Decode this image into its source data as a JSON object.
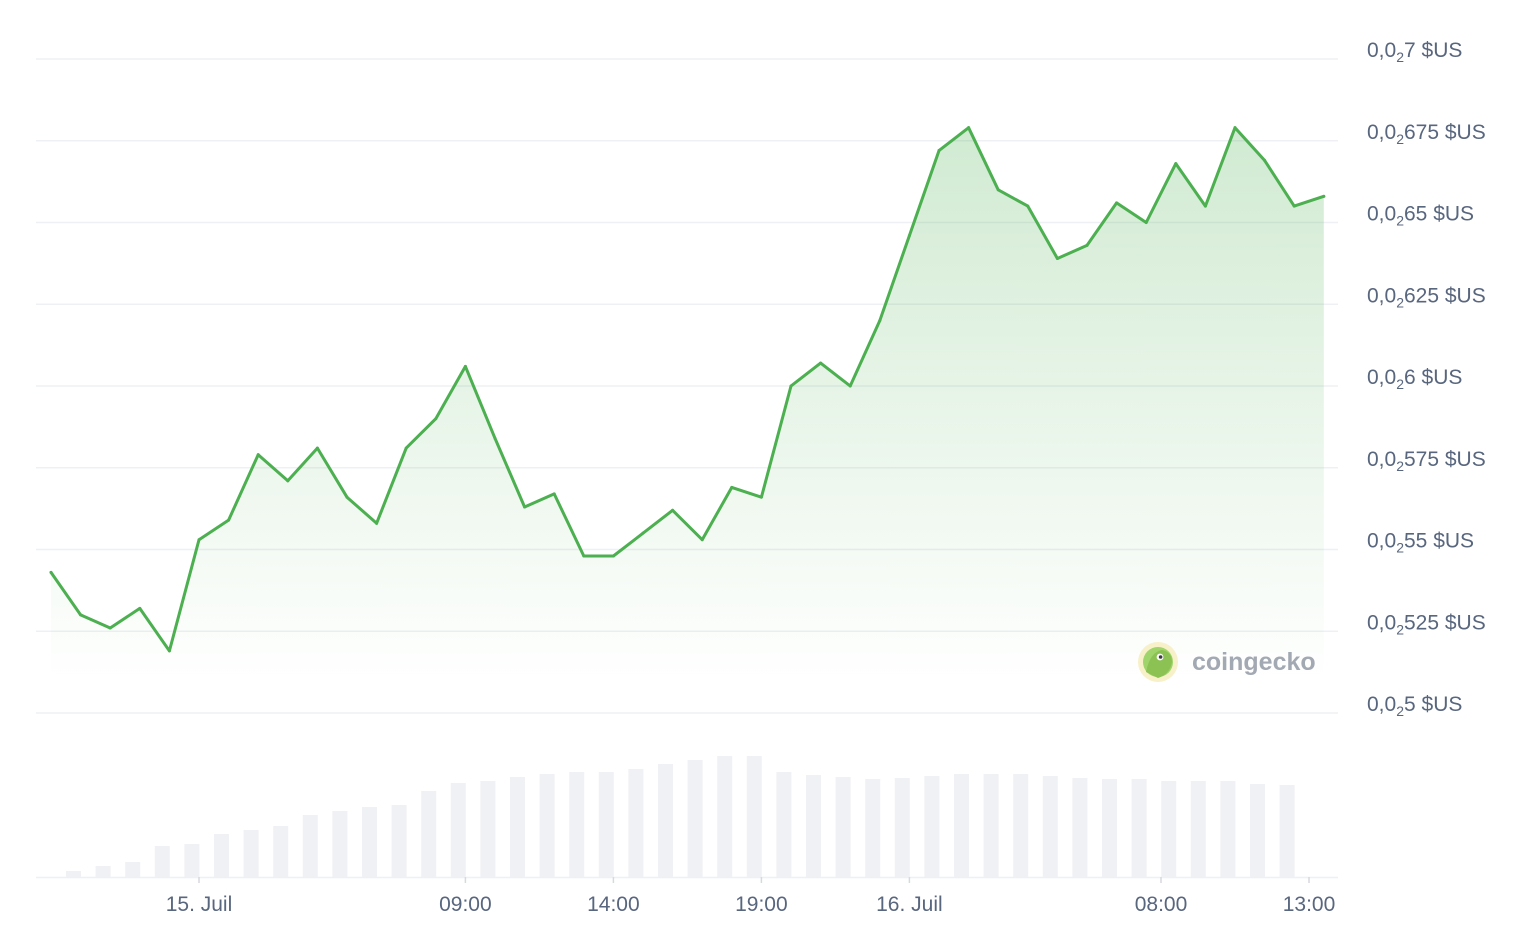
{
  "chart_data": {
    "type": "area",
    "brand": "coingecko",
    "line_color": "#4caf50",
    "fill_color": "#4caf50",
    "grid_color": "#eef0f3",
    "volume_color": "#eff1f5",
    "label_color": "#58667e",
    "y_unit": "$US",
    "ylim": [
      0.025,
      0.027
    ],
    "y_ticks": [
      {
        "value": 0.027,
        "int": "0,0",
        "sub": "2",
        "rest": "7 $US"
      },
      {
        "value": 0.02675,
        "int": "0,0",
        "sub": "2",
        "rest": "675 $US"
      },
      {
        "value": 0.0265,
        "int": "0,0",
        "sub": "2",
        "rest": "65 $US"
      },
      {
        "value": 0.02625,
        "int": "0,0",
        "sub": "2",
        "rest": "625 $US"
      },
      {
        "value": 0.026,
        "int": "0,0",
        "sub": "2",
        "rest": "6 $US"
      },
      {
        "value": 0.02575,
        "int": "0,0",
        "sub": "2",
        "rest": "575 $US"
      },
      {
        "value": 0.0255,
        "int": "0,0",
        "sub": "2",
        "rest": "55 $US"
      },
      {
        "value": 0.02525,
        "int": "0,0",
        "sub": "2",
        "rest": "525 $US"
      },
      {
        "value": 0.025,
        "int": "0,0",
        "sub": "2",
        "rest": "5 $US"
      }
    ],
    "x_ticks": [
      {
        "label": "15. Juil",
        "index": 5
      },
      {
        "label": "09:00",
        "index": 14
      },
      {
        "label": "14:00",
        "index": 19
      },
      {
        "label": "19:00",
        "index": 24
      },
      {
        "label": "16. Juil",
        "index": 29
      },
      {
        "label": "08:00",
        "index": 37.5
      },
      {
        "label": "13:00",
        "index": 42.5
      }
    ],
    "series": [
      {
        "values": [
          0.02543,
          0.0253,
          0.02526,
          0.02532,
          0.02519,
          0.02553,
          0.02559,
          0.02579,
          0.02571,
          0.02581,
          0.02566,
          0.02558,
          0.02581,
          0.0259,
          0.02606,
          0.02584,
          0.02563,
          0.02567,
          0.02548,
          0.02548,
          0.02555,
          0.02562,
          0.02553,
          0.02569,
          0.02566,
          0.026,
          0.02607,
          0.026,
          0.0262,
          0.02646,
          0.02672,
          0.02679,
          0.0266,
          0.02655,
          0.02639,
          0.02643,
          0.02656,
          0.0265,
          0.02668,
          0.02655,
          0.02679,
          0.02669,
          0.02655,
          0.02658
        ]
      }
    ],
    "volume": [
      6,
      11,
      15,
      31,
      33,
      43,
      47,
      51,
      62,
      66,
      70,
      72,
      86,
      94,
      96,
      100,
      103,
      105,
      105,
      108,
      113,
      117,
      121,
      121,
      105,
      102,
      100,
      98,
      99,
      101,
      103,
      103,
      103,
      101,
      99,
      98,
      98,
      96,
      96,
      96,
      93,
      92
    ]
  }
}
